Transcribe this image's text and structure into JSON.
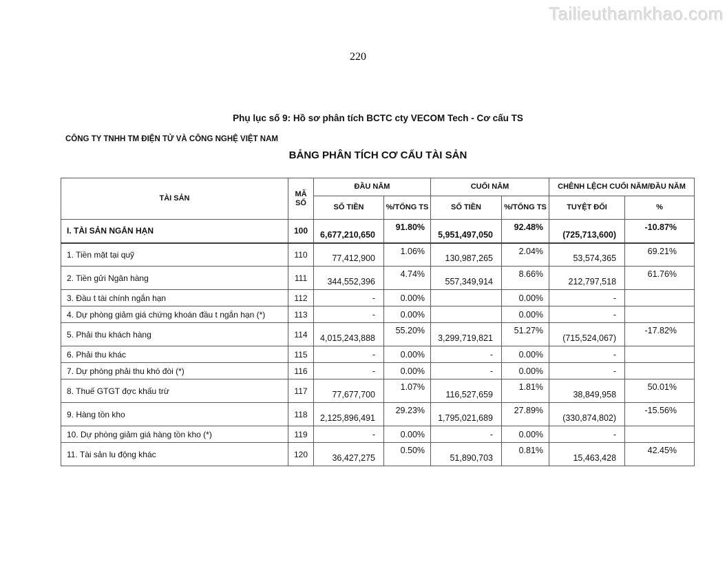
{
  "watermark": "Tailieuthamkhao.com",
  "page_number": "220",
  "appendix_title": "Phụ lục số 9: Hồ sơ phân tích BCTC cty VECOM Tech - Cơ cấu TS",
  "company_name": "CÔNG TY TNHH TM ĐIỆN TỬ VÀ CÔNG NGHỆ VIỆT NAM",
  "table_title": "BẢNG PHÂN TÍCH CƠ CẤU TÀI SẢN",
  "colors": {
    "border": "#5a5a5a",
    "heavy_border": "#3c3c3c",
    "watermark": "#dcdcdc",
    "text": "#111111"
  },
  "table": {
    "headers": {
      "asset": "TÀI SẢN",
      "code": "MÃ SỐ",
      "begin_year": "ĐẦU NĂM",
      "end_year": "CUỐI NĂM",
      "diff": "CHÊNH LỆCH CUỐI NĂM/ĐẦU NĂM",
      "amount": "SỐ TIỀN",
      "pct_total": "%/TỔNG TS",
      "absolute": "TUYỆT ĐỐI",
      "percent": "%"
    },
    "rows": [
      {
        "label": "I. TÀI SẢN NGẮN HẠN",
        "code": "100",
        "begin_amount": "6,677,210,650",
        "begin_pct": "91.80%",
        "end_amount": "5,951,497,050",
        "end_pct": "92.48%",
        "diff_abs": "(725,713,600)",
        "diff_pct": "-10.87%",
        "tall": true,
        "bold": true,
        "total": true
      },
      {
        "label": "1. Tiền mặt tại quỹ",
        "code": "110",
        "begin_amount": "77,412,900",
        "begin_pct": "1.06%",
        "end_amount": "130,987,265",
        "end_pct": "2.04%",
        "diff_abs": "53,574,365",
        "diff_pct": "69.21%",
        "tall": true,
        "bold": false,
        "total": false
      },
      {
        "label": "2. Tiền gửi Ngân hàng",
        "code": "111",
        "begin_amount": "344,552,396",
        "begin_pct": "4.74%",
        "end_amount": "557,349,914",
        "end_pct": "8.66%",
        "diff_abs": "212,797,518",
        "diff_pct": "61.76%",
        "tall": true,
        "bold": false,
        "total": false
      },
      {
        "label": "3. Đầu t tài chính ngắn hạn",
        "code": "112",
        "begin_amount": "-",
        "begin_pct": "0.00%",
        "end_amount": "",
        "end_pct": "0.00%",
        "diff_abs": "-",
        "diff_pct": "",
        "tall": false,
        "bold": false,
        "total": false
      },
      {
        "label": "4. Dự phòng giảm giá chứng khoán đầu t ngắn hạn (*)",
        "code": "113",
        "begin_amount": "-",
        "begin_pct": "0.00%",
        "end_amount": "",
        "end_pct": "0.00%",
        "diff_abs": "-",
        "diff_pct": "",
        "tall": false,
        "bold": false,
        "total": false
      },
      {
        "label": "5. Phải thu khách hàng",
        "code": "114",
        "begin_amount": "4,015,243,888",
        "begin_pct": "55.20%",
        "end_amount": "3,299,719,821",
        "end_pct": "51.27%",
        "diff_abs": "(715,524,067)",
        "diff_pct": "-17.82%",
        "tall": true,
        "bold": false,
        "total": false
      },
      {
        "label": "6. Phải thu khác",
        "code": "115",
        "begin_amount": "-",
        "begin_pct": "0.00%",
        "end_amount": "-",
        "end_pct": "0.00%",
        "diff_abs": "-",
        "diff_pct": "",
        "tall": false,
        "bold": false,
        "total": false
      },
      {
        "label": "7. Dự phòng phải thu khó đòi (*)",
        "code": "116",
        "begin_amount": "-",
        "begin_pct": "0.00%",
        "end_amount": "-",
        "end_pct": "0.00%",
        "diff_abs": "-",
        "diff_pct": "",
        "tall": false,
        "bold": false,
        "total": false
      },
      {
        "label": "8. Thuế GTGT đợc khấu trừ",
        "code": "117",
        "begin_amount": "77,677,700",
        "begin_pct": "1.07%",
        "end_amount": "116,527,659",
        "end_pct": "1.81%",
        "diff_abs": "38,849,958",
        "diff_pct": "50.01%",
        "tall": true,
        "bold": false,
        "total": false
      },
      {
        "label": "9. Hàng tồn kho",
        "code": "118",
        "begin_amount": "2,125,896,491",
        "begin_pct": "29.23%",
        "end_amount": "1,795,021,689",
        "end_pct": "27.89%",
        "diff_abs": "(330,874,802)",
        "diff_pct": "-15.56%",
        "tall": true,
        "bold": false,
        "total": false
      },
      {
        "label": "10. Dự phòng giảm giá hàng tồn kho (*)",
        "code": "119",
        "begin_amount": "-",
        "begin_pct": "0.00%",
        "end_amount": "-",
        "end_pct": "0.00%",
        "diff_abs": "-",
        "diff_pct": "",
        "tall": false,
        "bold": false,
        "total": false
      },
      {
        "label": "11. Tài sản lu động khác",
        "code": "120",
        "begin_amount": "36,427,275",
        "begin_pct": "0.50%",
        "end_amount": "51,890,703",
        "end_pct": "0.81%",
        "diff_abs": "15,463,428",
        "diff_pct": "42.45%",
        "tall": true,
        "bold": false,
        "total": false
      }
    ]
  }
}
